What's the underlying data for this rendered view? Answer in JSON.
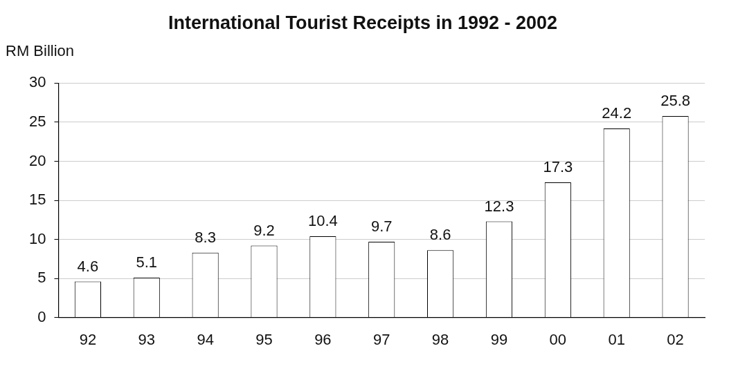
{
  "chart_data": {
    "type": "bar",
    "title": "International Tourist Receipts in 1992 - 2002",
    "ylabel": "RM Billion",
    "categories": [
      "92",
      "93",
      "94",
      "95",
      "96",
      "97",
      "98",
      "99",
      "00",
      "01",
      "02"
    ],
    "values": [
      4.6,
      5.1,
      8.3,
      9.2,
      10.4,
      9.7,
      8.6,
      12.3,
      17.3,
      24.2,
      25.8
    ],
    "color": "#ffffff",
    "ylim": [
      0,
      30
    ],
    "yticks": [
      0,
      5,
      10,
      15,
      20,
      25,
      30
    ],
    "grid": "y",
    "data_labels": true
  }
}
